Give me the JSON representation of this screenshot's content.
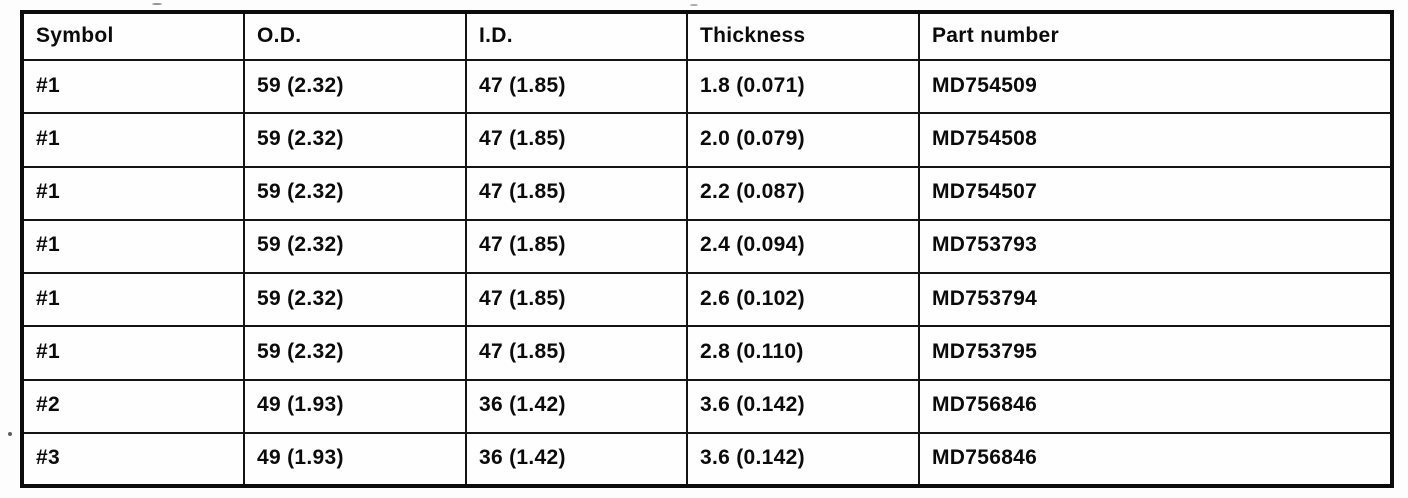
{
  "table": {
    "headers": [
      "Symbol",
      "O.D.",
      "I.D.",
      "Thickness",
      "Part number"
    ],
    "rows": [
      [
        "#1",
        "59 (2.32)",
        "47 (1.85)",
        "1.8 (0.071)",
        "MD754509"
      ],
      [
        "#1",
        "59 (2.32)",
        "47 (1.85)",
        "2.0 (0.079)",
        "MD754508"
      ],
      [
        "#1",
        "59 (2.32)",
        "47 (1.85)",
        "2.2 (0.087)",
        "MD754507"
      ],
      [
        "#1",
        "59 (2.32)",
        "47 (1.85)",
        "2.4 (0.094)",
        "MD753793"
      ],
      [
        "#1",
        "59 (2.32)",
        "47 (1.85)",
        "2.6 (0.102)",
        "MD753794"
      ],
      [
        "#1",
        "59 (2.32)",
        "47 (1.85)",
        "2.8 (0.110)",
        "MD753795"
      ],
      [
        "#2",
        "49 (1.93)",
        "36 (1.42)",
        "3.6 (0.142)",
        "MD756846"
      ],
      [
        "#3",
        "49 (1.93)",
        "36 (1.42)",
        "3.6 (0.142)",
        "MD756846"
      ]
    ],
    "colors": {
      "border": "#141414",
      "outer_border": "#0c0c0c",
      "text": "#0b0b0b",
      "background": "#fdfdfd"
    }
  }
}
